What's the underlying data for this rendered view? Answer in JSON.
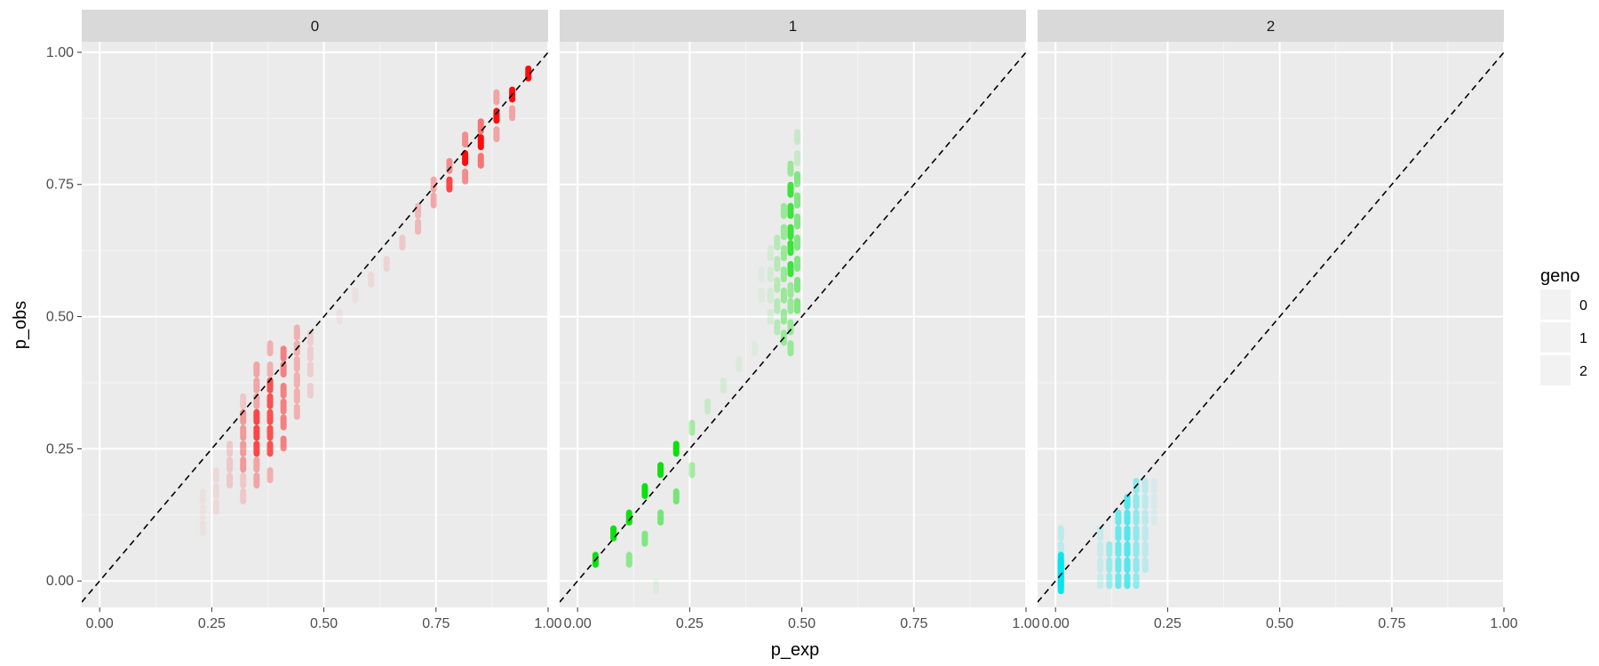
{
  "chart_data": {
    "type": "scatter",
    "facet_variable": "geno",
    "xlabel": "p_exp",
    "ylabel": "p_obs",
    "xlim": [
      -0.04,
      1.0
    ],
    "ylim": [
      -0.05,
      1.02
    ],
    "x_ticks": [
      0.0,
      0.25,
      0.5,
      0.75,
      1.0
    ],
    "x_tick_labels": [
      "0.00",
      "0.25",
      "0.50",
      "0.75",
      "1.00"
    ],
    "y_ticks": [
      0.0,
      0.25,
      0.5,
      0.75,
      1.0
    ],
    "y_tick_labels": [
      "0.00",
      "0.25",
      "0.50",
      "0.75",
      "1.00"
    ],
    "reference_line": {
      "slope": 1,
      "intercept": 0,
      "style": "dashed",
      "color": "#000000"
    },
    "grid": true,
    "panel_background": "#ebebeb",
    "strip_background": "#d9d9d9",
    "legend": {
      "title": "geno",
      "entries": [
        "0",
        "1",
        "2"
      ],
      "placement": "right"
    },
    "panels": [
      {
        "label": "0",
        "color": "#ff0000",
        "clusters": [
          {
            "x": 0.956,
            "ys": [
              0.96
            ],
            "alpha": 0.95
          },
          {
            "x": 0.92,
            "ys": [
              0.92
            ],
            "alpha": 0.95
          },
          {
            "x": 0.92,
            "ys": [
              0.885
            ],
            "alpha": 0.3
          },
          {
            "x": 0.885,
            "ys": [
              0.88
            ],
            "alpha": 0.95
          },
          {
            "x": 0.885,
            "ys": [
              0.845,
              0.915
            ],
            "alpha": 0.3
          },
          {
            "x": 0.85,
            "ys": [
              0.83
            ],
            "alpha": 0.95
          },
          {
            "x": 0.85,
            "ys": [
              0.86,
              0.795
            ],
            "alpha": 0.5
          },
          {
            "x": 0.815,
            "ys": [
              0.8
            ],
            "alpha": 0.95
          },
          {
            "x": 0.815,
            "ys": [
              0.765,
              0.835
            ],
            "alpha": 0.4
          },
          {
            "x": 0.78,
            "ys": [
              0.75
            ],
            "alpha": 0.7
          },
          {
            "x": 0.78,
            "ys": [
              0.785
            ],
            "alpha": 0.4
          },
          {
            "x": 0.745,
            "ys": [
              0.72,
              0.75
            ],
            "alpha": 0.3
          },
          {
            "x": 0.71,
            "ys": [
              0.67,
              0.7
            ],
            "alpha": 0.22
          },
          {
            "x": 0.675,
            "ys": [
              0.64
            ],
            "alpha": 0.15
          },
          {
            "x": 0.64,
            "ys": [
              0.6
            ],
            "alpha": 0.1
          },
          {
            "x": 0.605,
            "ys": [
              0.57
            ],
            "alpha": 0.07
          },
          {
            "x": 0.57,
            "ys": [
              0.54
            ],
            "alpha": 0.05
          },
          {
            "x": 0.535,
            "ys": [
              0.5
            ],
            "alpha": 0.05
          },
          {
            "x": 0.47,
            "ys": [
              0.36,
              0.4,
              0.43,
              0.46
            ],
            "alpha": 0.12
          },
          {
            "x": 0.44,
            "ys": [
              0.32,
              0.35,
              0.38,
              0.41,
              0.44,
              0.47
            ],
            "alpha": 0.25
          },
          {
            "x": 0.41,
            "ys": [
              0.26,
              0.3,
              0.33,
              0.36,
              0.4,
              0.43
            ],
            "alpha": 0.45
          },
          {
            "x": 0.38,
            "ys": [
              0.25,
              0.28,
              0.31,
              0.34,
              0.37
            ],
            "alpha": 0.65
          },
          {
            "x": 0.38,
            "ys": [
              0.2,
              0.4,
              0.44
            ],
            "alpha": 0.25
          },
          {
            "x": 0.35,
            "ys": [
              0.25,
              0.28,
              0.31
            ],
            "alpha": 0.7
          },
          {
            "x": 0.35,
            "ys": [
              0.19,
              0.22,
              0.34,
              0.37,
              0.4
            ],
            "alpha": 0.3
          },
          {
            "x": 0.32,
            "ys": [
              0.22,
              0.25,
              0.28,
              0.31
            ],
            "alpha": 0.35
          },
          {
            "x": 0.32,
            "ys": [
              0.16,
              0.19,
              0.34
            ],
            "alpha": 0.15
          },
          {
            "x": 0.29,
            "ys": [
              0.19,
              0.22,
              0.25
            ],
            "alpha": 0.15
          },
          {
            "x": 0.26,
            "ys": [
              0.14,
              0.17,
              0.2
            ],
            "alpha": 0.07
          },
          {
            "x": 0.23,
            "ys": [
              0.1,
              0.13,
              0.16
            ],
            "alpha": 0.04
          }
        ]
      },
      {
        "label": "1",
        "color": "#00e000",
        "clusters": [
          {
            "x": 0.04,
            "ys": [
              0.04
            ],
            "alpha": 0.95
          },
          {
            "x": 0.08,
            "ys": [
              0.09
            ],
            "alpha": 0.95
          },
          {
            "x": 0.115,
            "ys": [
              0.12
            ],
            "alpha": 0.95
          },
          {
            "x": 0.115,
            "ys": [
              0.04
            ],
            "alpha": 0.4
          },
          {
            "x": 0.15,
            "ys": [
              0.17
            ],
            "alpha": 0.95
          },
          {
            "x": 0.15,
            "ys": [
              0.08
            ],
            "alpha": 0.45
          },
          {
            "x": 0.185,
            "ys": [
              0.21
            ],
            "alpha": 0.95
          },
          {
            "x": 0.185,
            "ys": [
              0.12
            ],
            "alpha": 0.5
          },
          {
            "x": 0.22,
            "ys": [
              0.25
            ],
            "alpha": 0.95
          },
          {
            "x": 0.22,
            "ys": [
              0.16
            ],
            "alpha": 0.5
          },
          {
            "x": 0.255,
            "ys": [
              0.29
            ],
            "alpha": 0.3
          },
          {
            "x": 0.255,
            "ys": [
              0.21
            ],
            "alpha": 0.3
          },
          {
            "x": 0.29,
            "ys": [
              0.33
            ],
            "alpha": 0.15
          },
          {
            "x": 0.325,
            "ys": [
              0.37
            ],
            "alpha": 0.1
          },
          {
            "x": 0.36,
            "ys": [
              0.41
            ],
            "alpha": 0.07
          },
          {
            "x": 0.395,
            "ys": [
              0.44
            ],
            "alpha": 0.05
          },
          {
            "x": 0.43,
            "ys": [
              0.5,
              0.54,
              0.58,
              0.62
            ],
            "alpha": 0.1
          },
          {
            "x": 0.445,
            "ys": [
              0.48,
              0.52,
              0.56,
              0.6,
              0.64
            ],
            "alpha": 0.22
          },
          {
            "x": 0.46,
            "ys": [
              0.46,
              0.5,
              0.54,
              0.58,
              0.62,
              0.66,
              0.7
            ],
            "alpha": 0.35
          },
          {
            "x": 0.475,
            "ys": [
              0.59,
              0.63,
              0.66,
              0.7,
              0.74
            ],
            "alpha": 0.75
          },
          {
            "x": 0.475,
            "ys": [
              0.44,
              0.48,
              0.52,
              0.55,
              0.78
            ],
            "alpha": 0.35
          },
          {
            "x": 0.49,
            "ys": [
              0.52,
              0.56,
              0.6,
              0.64,
              0.68,
              0.72,
              0.76
            ],
            "alpha": 0.45
          },
          {
            "x": 0.49,
            "ys": [
              0.8,
              0.84
            ],
            "alpha": 0.15
          },
          {
            "x": 0.41,
            "ys": [
              0.54,
              0.58
            ],
            "alpha": 0.05
          },
          {
            "x": 0.175,
            "ys": [
              -0.01
            ],
            "alpha": 0.05
          }
        ]
      },
      {
        "label": "2",
        "color": "#00e5ee",
        "clusters": [
          {
            "x": 0.012,
            "ys": [
              -0.01,
              0.0,
              0.01,
              0.02,
              0.03,
              0.04
            ],
            "alpha": 0.95
          },
          {
            "x": 0.012,
            "ys": [
              0.06,
              0.09
            ],
            "alpha": 0.2
          },
          {
            "x": 0.12,
            "ys": [
              0.0,
              0.03,
              0.06
            ],
            "alpha": 0.35
          },
          {
            "x": 0.14,
            "ys": [
              0.0,
              0.03,
              0.06,
              0.09,
              0.12
            ],
            "alpha": 0.55
          },
          {
            "x": 0.16,
            "ys": [
              0.0,
              0.03,
              0.06,
              0.09,
              0.12,
              0.15
            ],
            "alpha": 0.65
          },
          {
            "x": 0.18,
            "ys": [
              0.0,
              0.03,
              0.06,
              0.09,
              0.12,
              0.15,
              0.18
            ],
            "alpha": 0.4
          },
          {
            "x": 0.2,
            "ys": [
              0.03,
              0.06,
              0.09,
              0.12,
              0.15,
              0.18
            ],
            "alpha": 0.2
          },
          {
            "x": 0.1,
            "ys": [
              0.0,
              0.03,
              0.06,
              0.09
            ],
            "alpha": 0.15
          },
          {
            "x": 0.22,
            "ys": [
              0.12,
              0.15,
              0.18
            ],
            "alpha": 0.08
          }
        ]
      }
    ]
  }
}
